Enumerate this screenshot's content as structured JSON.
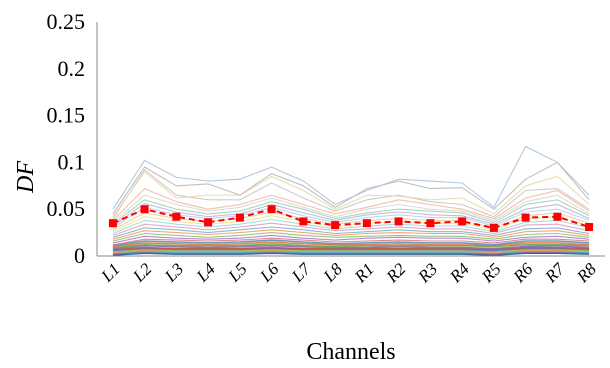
{
  "chart_data": {
    "type": "line",
    "title": "",
    "xlabel": "Channels",
    "ylabel": "DF",
    "ylim": [
      0,
      0.25
    ],
    "yticks": [
      "0",
      "0.05",
      "0.1",
      "0.15",
      "0.2",
      "0.25"
    ],
    "yticks_values": [
      0,
      0.05,
      0.1,
      0.15,
      0.2,
      0.25
    ],
    "categories": [
      "L1",
      "L2",
      "L3",
      "L4",
      "L5",
      "L6",
      "L7",
      "L8",
      "R1",
      "R2",
      "R3",
      "R4",
      "R5",
      "R6",
      "R7",
      "R8"
    ],
    "grid": false,
    "legend": "none",
    "highlight_color": "#ff0000",
    "series": [
      {
        "values": [
          0.035,
          0.05,
          0.042,
          0.036,
          0.041,
          0.05,
          0.037,
          0.033,
          0.035,
          0.037,
          0.035,
          0.037,
          0.03,
          0.041,
          0.042,
          0.031
        ],
        "color": "#ff0000",
        "style": "dashed-square-marker"
      },
      {
        "values": [
          0.05,
          0.102,
          0.084,
          0.08,
          0.082,
          0.095,
          0.08,
          0.055,
          0.07,
          0.082,
          0.08,
          0.078,
          0.052,
          0.117,
          0.1,
          0.065
        ],
        "color": "#a9c4dc"
      },
      {
        "values": [
          0.045,
          0.095,
          0.075,
          0.077,
          0.065,
          0.088,
          0.075,
          0.052,
          0.072,
          0.08,
          0.072,
          0.073,
          0.05,
          0.082,
          0.1,
          0.06
        ],
        "color": "#b9b9b9"
      },
      {
        "values": [
          0.042,
          0.09,
          0.062,
          0.065,
          0.065,
          0.085,
          0.07,
          0.05,
          0.065,
          0.064,
          0.06,
          0.062,
          0.045,
          0.075,
          0.085,
          0.055
        ],
        "color": "#e8d9a8"
      },
      {
        "values": [
          0.04,
          0.092,
          0.065,
          0.06,
          0.06,
          0.078,
          0.062,
          0.048,
          0.06,
          0.065,
          0.058,
          0.055,
          0.042,
          0.07,
          0.072,
          0.05
        ],
        "color": "#c7c7c7"
      },
      {
        "values": [
          0.038,
          0.072,
          0.058,
          0.05,
          0.055,
          0.065,
          0.055,
          0.045,
          0.052,
          0.06,
          0.055,
          0.05,
          0.04,
          0.062,
          0.07,
          0.048
        ],
        "color": "#f2b8a2"
      },
      {
        "values": [
          0.036,
          0.065,
          0.055,
          0.048,
          0.052,
          0.062,
          0.052,
          0.042,
          0.05,
          0.055,
          0.05,
          0.048,
          0.038,
          0.058,
          0.065,
          0.045
        ],
        "color": "#d8d8d8"
      },
      {
        "values": [
          0.034,
          0.06,
          0.05,
          0.045,
          0.048,
          0.058,
          0.05,
          0.04,
          0.046,
          0.05,
          0.048,
          0.046,
          0.036,
          0.055,
          0.06,
          0.043
        ],
        "color": "#9fd5a8"
      },
      {
        "values": [
          0.032,
          0.056,
          0.047,
          0.042,
          0.045,
          0.055,
          0.046,
          0.038,
          0.044,
          0.047,
          0.044,
          0.043,
          0.034,
          0.05,
          0.055,
          0.04
        ],
        "color": "#c4b0d8"
      },
      {
        "values": [
          0.03,
          0.052,
          0.044,
          0.04,
          0.043,
          0.052,
          0.043,
          0.036,
          0.041,
          0.044,
          0.041,
          0.041,
          0.032,
          0.047,
          0.05,
          0.038
        ],
        "color": "#b5d3f0"
      },
      {
        "values": [
          0.028,
          0.046,
          0.04,
          0.037,
          0.04,
          0.047,
          0.04,
          0.034,
          0.038,
          0.04,
          0.038,
          0.038,
          0.03,
          0.043,
          0.046,
          0.035
        ],
        "color": "#f6c89a"
      },
      {
        "values": [
          0.026,
          0.042,
          0.037,
          0.034,
          0.037,
          0.043,
          0.037,
          0.031,
          0.035,
          0.037,
          0.035,
          0.035,
          0.028,
          0.04,
          0.042,
          0.032
        ],
        "color": "#e6e6a0"
      },
      {
        "values": [
          0.024,
          0.038,
          0.034,
          0.031,
          0.034,
          0.039,
          0.034,
          0.029,
          0.032,
          0.034,
          0.032,
          0.032,
          0.026,
          0.036,
          0.038,
          0.03
        ],
        "color": "#a0d8d8"
      },
      {
        "values": [
          0.022,
          0.034,
          0.031,
          0.028,
          0.031,
          0.035,
          0.031,
          0.027,
          0.029,
          0.031,
          0.029,
          0.029,
          0.024,
          0.033,
          0.034,
          0.027
        ],
        "color": "#e0a0b8"
      },
      {
        "values": [
          0.02,
          0.03,
          0.028,
          0.025,
          0.028,
          0.031,
          0.028,
          0.024,
          0.026,
          0.028,
          0.026,
          0.026,
          0.022,
          0.029,
          0.03,
          0.024
        ],
        "color": "#7fb0d0"
      },
      {
        "values": [
          0.018,
          0.027,
          0.025,
          0.023,
          0.025,
          0.028,
          0.025,
          0.022,
          0.024,
          0.025,
          0.024,
          0.024,
          0.02,
          0.026,
          0.027,
          0.022
        ],
        "color": "#f0a060"
      },
      {
        "values": [
          0.016,
          0.024,
          0.022,
          0.02,
          0.022,
          0.025,
          0.022,
          0.02,
          0.021,
          0.022,
          0.021,
          0.021,
          0.018,
          0.023,
          0.024,
          0.02
        ],
        "color": "#90c070"
      },
      {
        "values": [
          0.014,
          0.021,
          0.019,
          0.018,
          0.019,
          0.022,
          0.019,
          0.017,
          0.019,
          0.02,
          0.019,
          0.019,
          0.016,
          0.02,
          0.021,
          0.018
        ],
        "color": "#b07ad0"
      },
      {
        "values": [
          0.012,
          0.018,
          0.017,
          0.016,
          0.017,
          0.019,
          0.017,
          0.015,
          0.016,
          0.017,
          0.016,
          0.016,
          0.014,
          0.018,
          0.018,
          0.016
        ],
        "color": "#d08080"
      },
      {
        "values": [
          0.011,
          0.016,
          0.015,
          0.014,
          0.015,
          0.017,
          0.015,
          0.013,
          0.014,
          0.015,
          0.014,
          0.014,
          0.012,
          0.016,
          0.016,
          0.014
        ],
        "color": "#5c8fc0"
      },
      {
        "values": [
          0.01,
          0.014,
          0.013,
          0.012,
          0.013,
          0.015,
          0.013,
          0.012,
          0.012,
          0.013,
          0.012,
          0.012,
          0.011,
          0.014,
          0.014,
          0.012
        ],
        "color": "#e07a3a"
      },
      {
        "values": [
          0.009,
          0.012,
          0.011,
          0.011,
          0.011,
          0.013,
          0.011,
          0.01,
          0.011,
          0.011,
          0.011,
          0.011,
          0.01,
          0.012,
          0.012,
          0.011
        ],
        "color": "#6aa84f"
      },
      {
        "values": [
          0.008,
          0.011,
          0.01,
          0.009,
          0.01,
          0.011,
          0.01,
          0.009,
          0.009,
          0.01,
          0.009,
          0.009,
          0.008,
          0.01,
          0.011,
          0.009
        ],
        "color": "#8e63b8"
      },
      {
        "values": [
          0.007,
          0.009,
          0.008,
          0.008,
          0.008,
          0.009,
          0.008,
          0.008,
          0.008,
          0.008,
          0.008,
          0.008,
          0.007,
          0.009,
          0.009,
          0.008
        ],
        "color": "#c0504d"
      },
      {
        "values": [
          0.006,
          0.008,
          0.007,
          0.007,
          0.007,
          0.008,
          0.007,
          0.007,
          0.007,
          0.007,
          0.007,
          0.007,
          0.006,
          0.008,
          0.008,
          0.007
        ],
        "color": "#4a7ebb"
      },
      {
        "values": [
          0.005,
          0.007,
          0.006,
          0.006,
          0.006,
          0.007,
          0.006,
          0.006,
          0.006,
          0.006,
          0.006,
          0.006,
          0.005,
          0.007,
          0.007,
          0.006
        ],
        "color": "#9bbb59"
      },
      {
        "values": [
          0.004,
          0.006,
          0.005,
          0.005,
          0.005,
          0.006,
          0.005,
          0.005,
          0.005,
          0.005,
          0.005,
          0.005,
          0.004,
          0.006,
          0.006,
          0.005
        ],
        "color": "#f79646"
      },
      {
        "values": [
          0.003,
          0.005,
          0.004,
          0.004,
          0.004,
          0.005,
          0.004,
          0.004,
          0.004,
          0.004,
          0.004,
          0.004,
          0.003,
          0.005,
          0.005,
          0.004
        ],
        "color": "#4bacc6"
      },
      {
        "values": [
          0.002,
          0.004,
          0.003,
          0.003,
          0.003,
          0.004,
          0.003,
          0.003,
          0.003,
          0.003,
          0.003,
          0.003,
          0.002,
          0.004,
          0.004,
          0.003
        ],
        "color": "#8064a2"
      },
      {
        "values": [
          0.001,
          0.003,
          0.002,
          0.002,
          0.002,
          0.003,
          0.002,
          0.002,
          0.002,
          0.002,
          0.002,
          0.002,
          0.001,
          0.003,
          0.003,
          0.002
        ],
        "color": "#1f497d"
      }
    ]
  }
}
